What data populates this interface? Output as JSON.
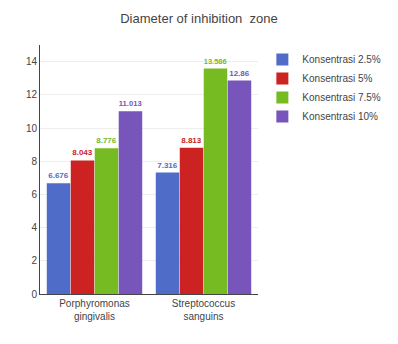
{
  "chart_data": {
    "type": "bar",
    "title": "Diameter of inhibition  zone",
    "categories": [
      "Porphyromonas\ngingivalis",
      "Streptococcus\nsanguins"
    ],
    "series": [
      {
        "name": "Konsentrasi 2.5%",
        "color": "#4f6dc8",
        "values": [
          6.676,
          7.316
        ]
      },
      {
        "name": "Konsentrasi 5%",
        "color": "#cc2222",
        "values": [
          8.043,
          8.813
        ]
      },
      {
        "name": "Konsentrasi 7.5%",
        "color": "#77bb22",
        "values": [
          8.776,
          13.586
        ]
      },
      {
        "name": "Konsentrasi 10%",
        "color": "#7755bb",
        "values": [
          11.013,
          12.86
        ]
      }
    ],
    "ylim": [
      0,
      15
    ],
    "yticks": [
      0,
      2,
      4,
      6,
      8,
      10,
      12,
      14
    ],
    "grid": true,
    "legend": "right",
    "data_labels": true
  }
}
